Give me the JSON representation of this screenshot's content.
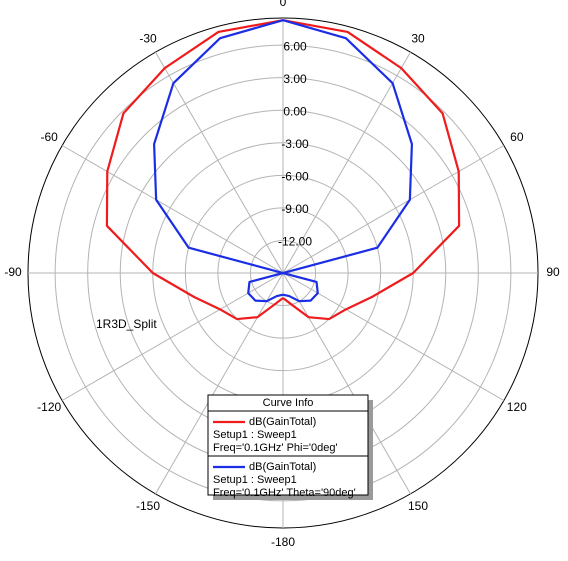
{
  "chart_data": {
    "type": "polar",
    "annotation": "1R3D_Split",
    "legend_title": "Curve Info",
    "theta": [
      -180,
      -165,
      -150,
      -135,
      -120,
      -105,
      -90,
      -75,
      -60,
      -45,
      -30,
      -15,
      0,
      15,
      30,
      45,
      60,
      75,
      90,
      105,
      120,
      135,
      150,
      165,
      180
    ],
    "series": [
      {
        "name": "dB(GainTotal)",
        "setup": "Setup1 : Sweep1",
        "condition": "Freq='0.1GHz' Phi='0deg'",
        "color": "#ee1c1c",
        "values": [
          -12.7,
          -12.0,
          -10.3,
          -9.0,
          -8.3,
          -6.5,
          -3.0,
          1.8,
          3.7,
          5.8,
          6.8,
          8.0,
          8.3,
          8.0,
          6.8,
          5.8,
          3.7,
          1.8,
          -3.0,
          -6.5,
          -8.3,
          -9.0,
          -10.3,
          -12.0,
          -12.7
        ]
      },
      {
        "name": "dB(GainTotal)",
        "setup": "Setup1 : Sweep1",
        "condition": "Freq='0.1GHz' Theta='90deg'",
        "color": "#1b2ee6",
        "values": [
          -13.0,
          -12.8,
          -12.0,
          -11.4,
          -11.3,
          -11.8,
          -15,
          -6.0,
          -1.5,
          1.8,
          5.2,
          7.4,
          8.3,
          7.4,
          5.2,
          1.8,
          -1.5,
          -6.0,
          -15,
          -11.8,
          -11.3,
          -11.4,
          -12.0,
          -12.8,
          -13.0
        ]
      }
    ],
    "rlim": [
      -15,
      8.5
    ],
    "rticks": [
      {
        "value": 6,
        "label": "6.00"
      },
      {
        "value": 3,
        "label": "3.00"
      },
      {
        "value": 0,
        "label": "0.00"
      },
      {
        "value": -3,
        "label": "-3.00"
      },
      {
        "value": -6,
        "label": "-6.00"
      },
      {
        "value": -9,
        "label": "-9.00"
      },
      {
        "value": -12,
        "label": "-12.00"
      }
    ],
    "thetaticks": [
      0,
      30,
      60,
      90,
      120,
      150,
      -180,
      -150,
      -120,
      -90,
      -60,
      -30
    ],
    "grid": true
  }
}
